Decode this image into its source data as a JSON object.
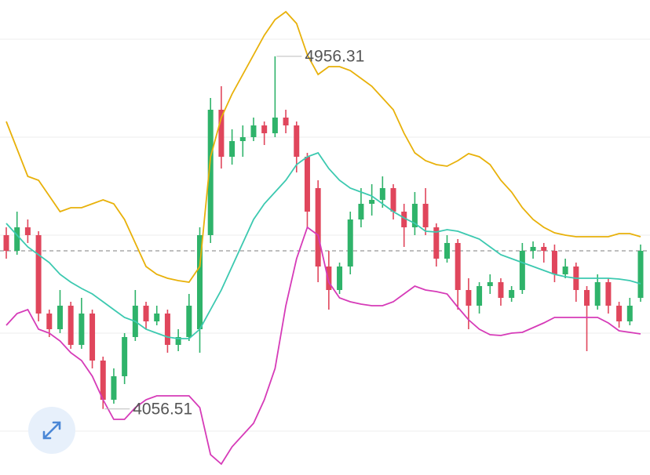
{
  "chart_data": {
    "type": "candlestick",
    "ylim": [
      3888,
      5100
    ],
    "grid_values": [
      5000,
      4750,
      4500,
      4250,
      4000
    ],
    "up_color": "#2fb36a",
    "down_color": "#e0465c",
    "candles": [
      [
        4500,
        4520,
        4440,
        4460
      ],
      [
        4460,
        4560,
        4450,
        4520
      ],
      [
        4520,
        4540,
        4480,
        4500
      ],
      [
        4500,
        4510,
        4280,
        4300
      ],
      [
        4300,
        4310,
        4240,
        4260
      ],
      [
        4260,
        4360,
        4250,
        4320
      ],
      [
        4320,
        4330,
        4210,
        4220
      ],
      [
        4220,
        4340,
        4210,
        4300
      ],
      [
        4300,
        4310,
        4160,
        4180
      ],
      [
        4180,
        4190,
        4056.51,
        4080
      ],
      [
        4080,
        4160,
        4070,
        4140
      ],
      [
        4140,
        4250,
        4120,
        4240
      ],
      [
        4240,
        4360,
        4230,
        4320
      ],
      [
        4320,
        4330,
        4260,
        4280
      ],
      [
        4280,
        4320,
        4270,
        4300
      ],
      [
        4300,
        4310,
        4200,
        4220
      ],
      [
        4220,
        4260,
        4204,
        4240
      ],
      [
        4240,
        4350,
        4230,
        4320
      ],
      [
        4260,
        4520,
        4200,
        4500
      ],
      [
        4500,
        4850,
        4480,
        4820
      ],
      [
        4820,
        4880,
        4670,
        4700
      ],
      [
        4700,
        4770,
        4680,
        4740
      ],
      [
        4740,
        4780,
        4700,
        4750
      ],
      [
        4750,
        4800,
        4740,
        4780
      ],
      [
        4780,
        4790,
        4730,
        4760
      ],
      [
        4760,
        4956.31,
        4750,
        4800
      ],
      [
        4800,
        4820,
        4760,
        4780
      ],
      [
        4780,
        4790,
        4660,
        4700
      ],
      [
        4700,
        4710,
        4520,
        4560
      ],
      [
        4620,
        4640,
        4380,
        4420
      ],
      [
        4420,
        4460,
        4310,
        4360
      ],
      [
        4360,
        4430,
        4350,
        4420
      ],
      [
        4420,
        4560,
        4400,
        4540
      ],
      [
        4540,
        4620,
        4520,
        4580
      ],
      [
        4580,
        4630,
        4550,
        4590
      ],
      [
        4590,
        4650,
        4570,
        4620
      ],
      [
        4620,
        4630,
        4540,
        4560
      ],
      [
        4560,
        4580,
        4470,
        4520
      ],
      [
        4520,
        4610,
        4500,
        4580
      ],
      [
        4580,
        4620,
        4500,
        4520
      ],
      [
        4520,
        4530,
        4420,
        4440
      ],
      [
        4440,
        4500,
        4430,
        4480
      ],
      [
        4480,
        4490,
        4310,
        4360
      ],
      [
        4360,
        4390,
        4260,
        4320
      ],
      [
        4320,
        4380,
        4300,
        4370
      ],
      [
        4370,
        4400,
        4350,
        4380
      ],
      [
        4380,
        4390,
        4320,
        4340
      ],
      [
        4340,
        4370,
        4330,
        4360
      ],
      [
        4360,
        4480,
        4350,
        4460
      ],
      [
        4460,
        4484,
        4440,
        4470
      ],
      [
        4470,
        4480,
        4430,
        4460
      ],
      [
        4460,
        4476,
        4380,
        4400
      ],
      [
        4400,
        4440,
        4390,
        4420
      ],
      [
        4420,
        4430,
        4330,
        4360
      ],
      [
        4360,
        4370,
        4204,
        4320
      ],
      [
        4320,
        4400,
        4310,
        4380
      ],
      [
        4380,
        4390,
        4300,
        4320
      ],
      [
        4320,
        4330,
        4264,
        4280
      ],
      [
        4280,
        4340,
        4270,
        4320
      ],
      [
        4340,
        4476,
        4330,
        4460
      ]
    ],
    "lines": [
      {
        "color": "#e8b10a",
        "values": [
          4790,
          4720,
          4650,
          4640,
          4600,
          4560,
          4570,
          4570,
          4580,
          4590,
          4580,
          4540,
          4480,
          4420,
          4400,
          4390,
          4384,
          4380,
          4420,
          4700,
          4800,
          4860,
          4910,
          4960,
          5010,
          5050,
          5070,
          5040,
          4960,
          4910,
          4930,
          4930,
          4920,
          4900,
          4880,
          4850,
          4820,
          4760,
          4710,
          4690,
          4680,
          4676,
          4690,
          4708,
          4700,
          4680,
          4640,
          4610,
          4570,
          4540,
          4520,
          4506,
          4500,
          4496,
          4496,
          4496,
          4496,
          4504,
          4504,
          4496
        ]
      },
      {
        "color": "#3cc9b0",
        "values": [
          4530,
          4500,
          4470,
          4450,
          4430,
          4400,
          4380,
          4364,
          4350,
          4330,
          4310,
          4290,
          4280,
          4260,
          4250,
          4240,
          4236,
          4236,
          4260,
          4310,
          4360,
          4420,
          4480,
          4540,
          4580,
          4610,
          4640,
          4680,
          4700,
          4710,
          4670,
          4640,
          4620,
          4610,
          4600,
          4580,
          4560,
          4544,
          4530,
          4510,
          4508,
          4514,
          4510,
          4500,
          4490,
          4470,
          4450,
          4440,
          4430,
          4420,
          4410,
          4400,
          4394,
          4390,
          4390,
          4390,
          4390,
          4388,
          4384,
          4376
        ]
      },
      {
        "color": "#d63bb8",
        "values": [
          4270,
          4300,
          4310,
          4260,
          4250,
          4230,
          4200,
          4180,
          4140,
          4080,
          4030,
          4030,
          4060,
          4080,
          4090,
          4090,
          4090,
          4090,
          4060,
          3940,
          3916,
          3960,
          3990,
          4020,
          4080,
          4160,
          4320,
          4440,
          4520,
          4500,
          4380,
          4340,
          4330,
          4324,
          4320,
          4320,
          4330,
          4350,
          4370,
          4360,
          4356,
          4350,
          4316,
          4284,
          4260,
          4246,
          4244,
          4250,
          4252,
          4264,
          4276,
          4290,
          4290,
          4290,
          4290,
          4290,
          4276,
          4256,
          4252,
          4248
        ]
      }
    ]
  }
}
